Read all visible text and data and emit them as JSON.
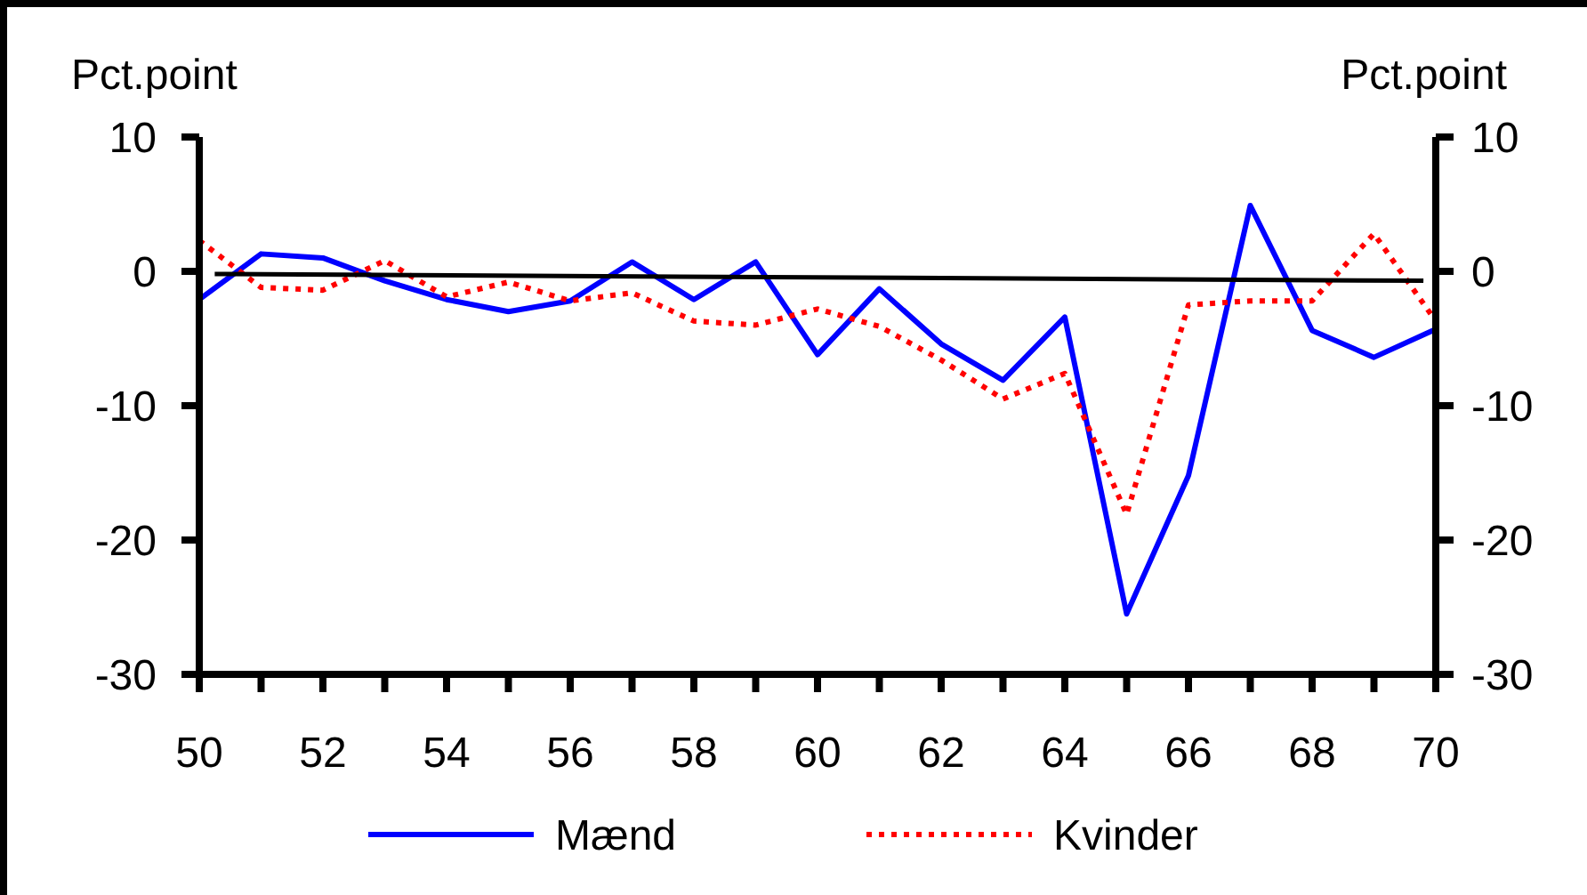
{
  "chart_data": {
    "type": "line",
    "x": [
      50,
      51,
      52,
      53,
      54,
      55,
      56,
      57,
      58,
      59,
      60,
      61,
      62,
      63,
      64,
      65,
      66,
      67,
      68,
      69,
      70
    ],
    "series": [
      {
        "name": "Mænd",
        "color": "#0000ff",
        "line_style": "solid",
        "values": [
          -2.1,
          1.3,
          1.0,
          -0.7,
          -2.1,
          -3.0,
          -2.2,
          0.7,
          -2.1,
          0.7,
          -6.2,
          -1.3,
          -5.4,
          -8.1,
          -3.4,
          -25.5,
          -15.2,
          4.9,
          -4.4,
          -6.4,
          -4.3
        ]
      },
      {
        "name": "Kvinder",
        "color": "#ff0000",
        "line_style": "dotted",
        "values": [
          2.3,
          -1.2,
          -1.4,
          0.8,
          -1.9,
          -0.8,
          -2.2,
          -1.6,
          -3.7,
          -4.0,
          -2.8,
          -4.1,
          -6.6,
          -9.5,
          -7.6,
          -18.1,
          -2.5,
          -2.2,
          -2.2,
          2.8,
          -3.7
        ]
      },
      {
        "color": "#000000",
        "line_style": "solid",
        "x": [
          50.25,
          69.8
        ],
        "values": [
          -0.2,
          -0.7
        ]
      }
    ],
    "ylabel": "Pct.point",
    "y2label": "Pct.point",
    "xlim": [
      50,
      70
    ],
    "xticks": [
      50,
      {
        "value": 51,
        "label": null
      },
      52,
      {
        "value": 53,
        "label": null
      },
      54,
      {
        "value": 55,
        "label": null
      },
      56,
      {
        "value": 57,
        "label": null
      },
      58,
      {
        "value": 59,
        "label": null
      },
      60,
      {
        "value": 61,
        "label": null
      },
      62,
      {
        "value": 63,
        "label": null
      },
      64,
      {
        "value": 65,
        "label": null
      },
      66,
      {
        "value": 67,
        "label": null
      },
      68,
      {
        "value": 69,
        "label": null
      },
      70
    ],
    "ylim": [
      -30,
      10
    ],
    "yticks": [
      -30,
      -20,
      -10,
      0,
      10
    ],
    "y2lim": [
      -30,
      10
    ],
    "y2ticks": [
      -30,
      -20,
      -10,
      0,
      10
    ],
    "grid": false,
    "legend": "bottom",
    "marker": "none"
  }
}
